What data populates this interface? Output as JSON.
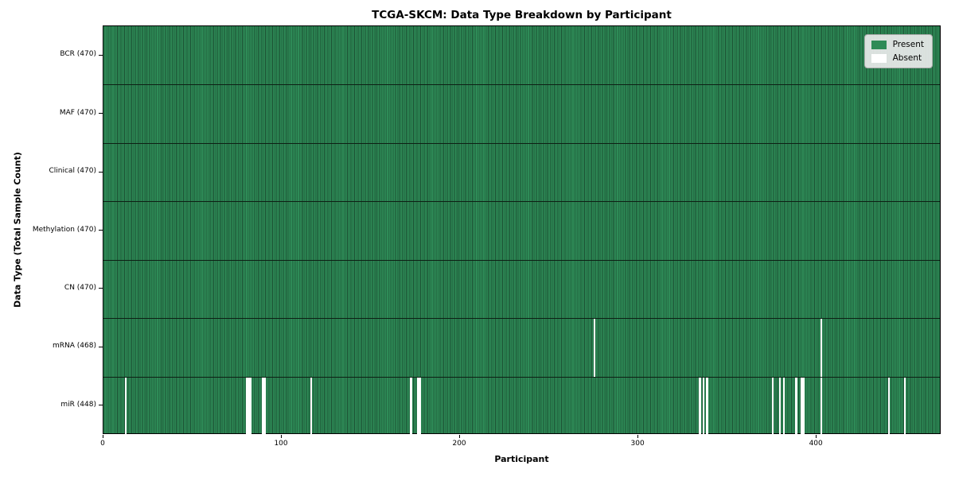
{
  "chart_data": {
    "type": "heatmap",
    "title": "TCGA-SKCM: Data Type Breakdown by Participant",
    "xlabel": "Participant",
    "ylabel": "Data Type (Total Sample Count)",
    "x_ticks": [
      0,
      100,
      200,
      300,
      400
    ],
    "x_range": [
      0,
      470
    ],
    "n_participants": 470,
    "grid": false,
    "legend_position": "upper right",
    "rows": [
      {
        "label": "BCR (470)",
        "data_type": "BCR",
        "present_count": 470,
        "absent_participants": []
      },
      {
        "label": "MAF (470)",
        "data_type": "MAF",
        "present_count": 470,
        "absent_participants": []
      },
      {
        "label": "Clinical (470)",
        "data_type": "Clinical",
        "present_count": 470,
        "absent_participants": []
      },
      {
        "label": "Methylation (470)",
        "data_type": "Methylation",
        "present_count": 470,
        "absent_participants": []
      },
      {
        "label": "CN (470)",
        "data_type": "CN",
        "present_count": 470,
        "absent_participants": []
      },
      {
        "label": "mRNA (468)",
        "data_type": "mRNA",
        "present_count": 468,
        "absent_participants": [
          275,
          402
        ]
      },
      {
        "label": "miR (448)",
        "data_type": "miR",
        "present_count": 448,
        "absent_participants": [
          12,
          80,
          81,
          82,
          89,
          90,
          116,
          172,
          176,
          177,
          334,
          336,
          338,
          375,
          379,
          381,
          388,
          391,
          392,
          402,
          440,
          449
        ]
      }
    ],
    "legend": [
      {
        "label": "Present",
        "color": "#2e8b57"
      },
      {
        "label": "Absent",
        "color": "#ffffff"
      }
    ],
    "colors": {
      "present": "#2e8b57",
      "bar_edge": "#1b4f32",
      "absent": "#ffffff",
      "row_divider": "#0d1f14",
      "axis": "#000000",
      "legend_background": "#eaeaea"
    }
  }
}
